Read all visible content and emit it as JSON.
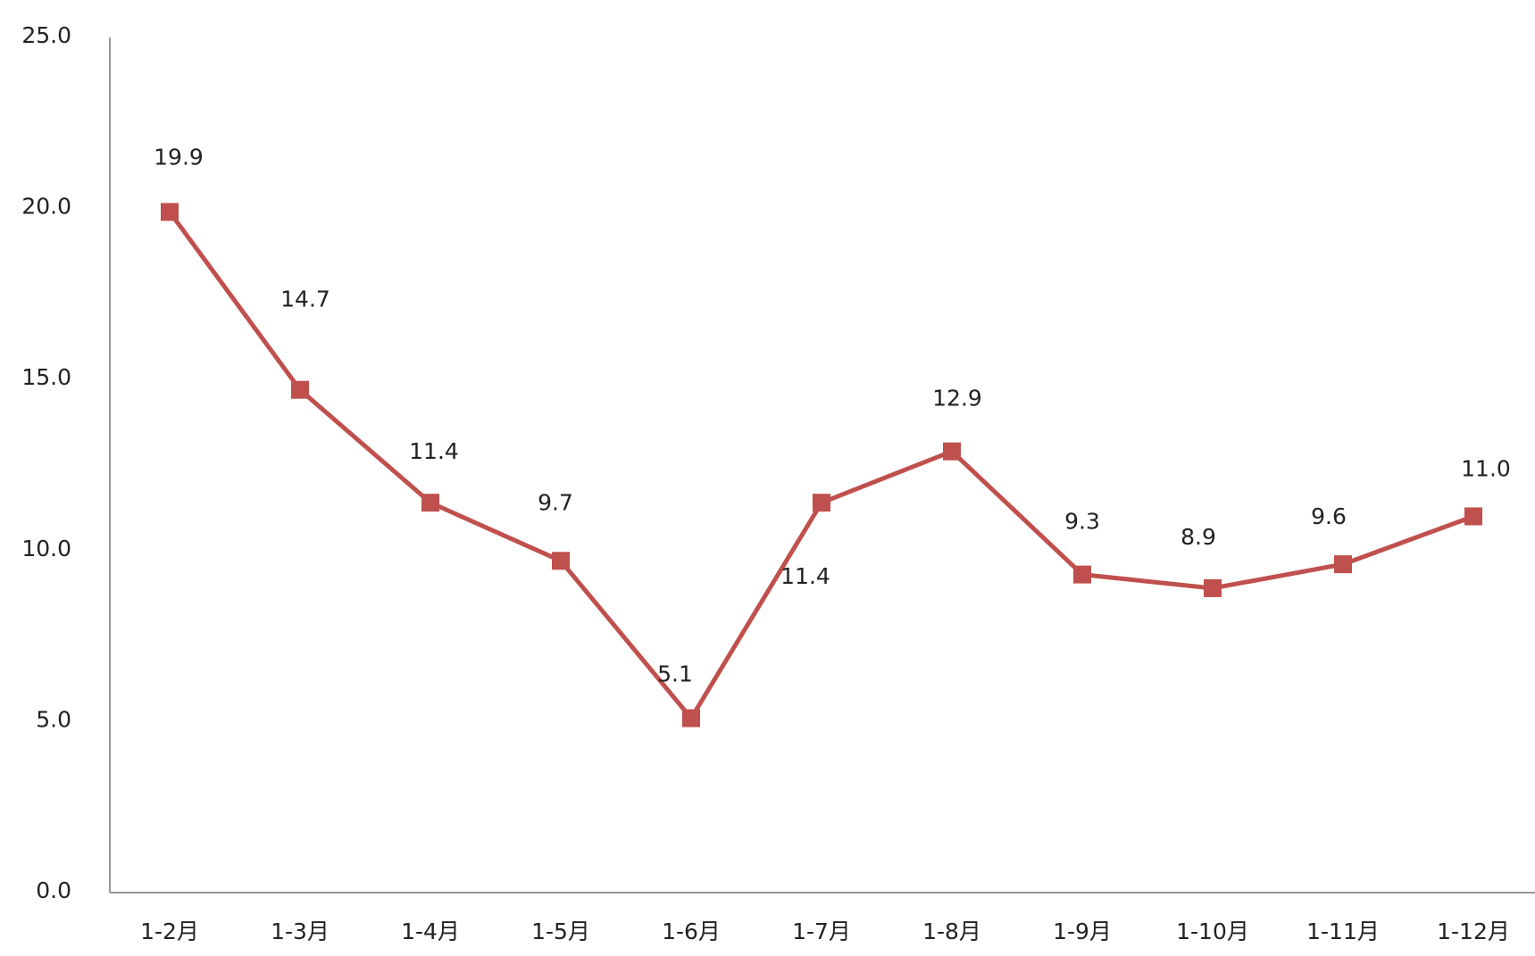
{
  "chart_data": {
    "type": "line",
    "categories": [
      "1-2月",
      "1-3月",
      "1-4月",
      "1-5月",
      "1-6月",
      "1-7月",
      "1-8月",
      "1-9月",
      "1-10月",
      "1-11月",
      "1-12月"
    ],
    "series": [
      {
        "color": "#c0504d",
        "values": [
          19.9,
          14.7,
          11.4,
          9.7,
          5.1,
          11.4,
          12.9,
          9.3,
          8.9,
          9.6,
          11.0
        ],
        "value_labels": [
          "19.9",
          "14.7",
          "11.4",
          "9.7",
          "5.1",
          "11.4",
          "12.9",
          "9.3",
          "8.9",
          "9.6",
          "11.0"
        ]
      }
    ],
    "ylim": [
      0,
      25
    ],
    "yticks": [
      {
        "value": 0,
        "label": "0.0"
      },
      {
        "value": 5,
        "label": "5.0"
      },
      {
        "value": 10,
        "label": "10.0"
      },
      {
        "value": 15,
        "label": "15.0"
      },
      {
        "value": 20,
        "label": "20.0"
      },
      {
        "value": 25,
        "label": "25.0"
      }
    ],
    "grid": false
  }
}
